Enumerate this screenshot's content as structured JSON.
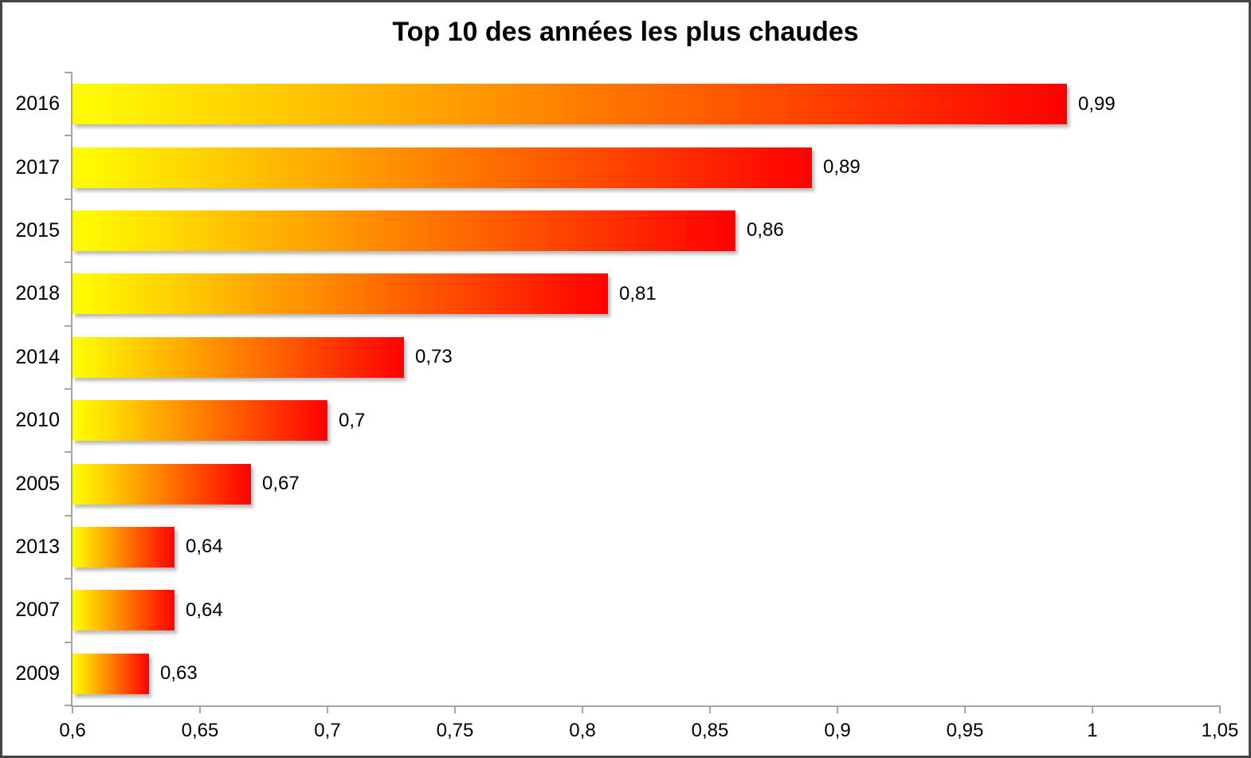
{
  "title": "Top 10 des années les plus chaudes",
  "chart_data": {
    "type": "bar",
    "orientation": "horizontal",
    "title": "Top 10 des années les plus chaudes",
    "categories": [
      "2016",
      "2017",
      "2015",
      "2018",
      "2014",
      "2010",
      "2005",
      "2013",
      "2007",
      "2009"
    ],
    "values": [
      0.99,
      0.89,
      0.86,
      0.81,
      0.73,
      0.7,
      0.67,
      0.64,
      0.64,
      0.63
    ],
    "value_labels": [
      "0,99",
      "0,89",
      "0,86",
      "0,81",
      "0,73",
      "0,7",
      "0,67",
      "0,64",
      "0,64",
      "0,63"
    ],
    "xlabel": "",
    "ylabel": "",
    "xlim": [
      0.6,
      1.05
    ],
    "x_ticks": [
      0.6,
      0.65,
      0.7,
      0.75,
      0.8,
      0.85,
      0.9,
      0.95,
      1,
      1.05
    ],
    "x_tick_labels": [
      "0,6",
      "0,65",
      "0,7",
      "0,75",
      "0,8",
      "0,85",
      "0,9",
      "0,95",
      "1",
      "1,05"
    ],
    "grid": false,
    "legend": "none",
    "bar_gradient_start": "#FFFF00",
    "bar_gradient_end": "#FF0000",
    "axis_color": "#A6A6A6",
    "text_color": "#000000",
    "frame_color": "#454545"
  }
}
